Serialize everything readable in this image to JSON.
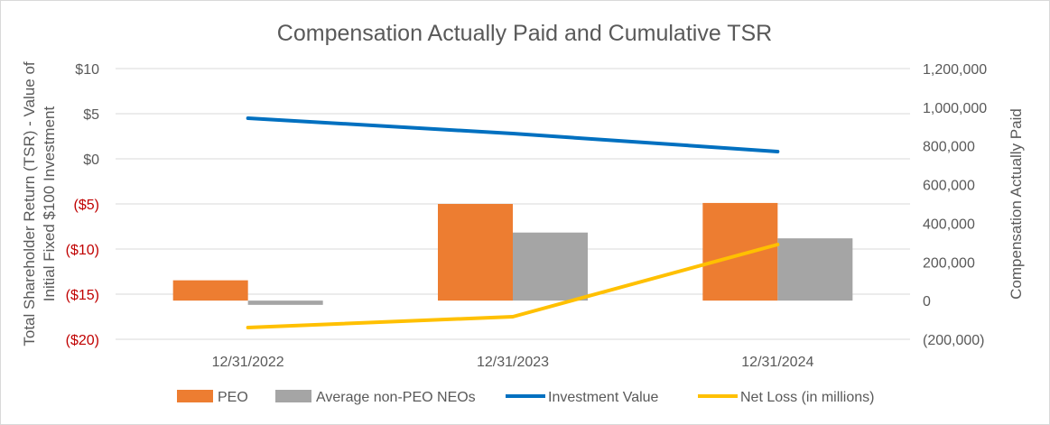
{
  "chart_data": {
    "type": "bar",
    "title": "Compensation Actually Paid and Cumulative TSR",
    "categories": [
      "12/31/2022",
      "12/31/2023",
      "12/31/2024"
    ],
    "left_axis": {
      "label": "Total Shareholder Return (TSR) - Value of Initial Fixed $100 Investment",
      "label_line1": "Total Shareholder Return (TSR) - Value of",
      "label_line2": "Initial Fixed $100 Investment",
      "ylim": [
        -20,
        10
      ],
      "ticks": [
        {
          "value": 10,
          "label": "$10",
          "color": "#595959"
        },
        {
          "value": 5,
          "label": "$5",
          "color": "#595959"
        },
        {
          "value": 0,
          "label": "$0",
          "color": "#595959"
        },
        {
          "value": -5,
          "label": "($5)",
          "color": "#c00000"
        },
        {
          "value": -10,
          "label": "($10)",
          "color": "#c00000"
        },
        {
          "value": -15,
          "label": "($15)",
          "color": "#c00000"
        },
        {
          "value": -20,
          "label": "($20)",
          "color": "#c00000"
        }
      ]
    },
    "right_axis": {
      "label": "Compensation Actually Paid",
      "ylim": [
        -200000,
        1200000
      ],
      "ticks": [
        {
          "value": 1200000,
          "label": "1,200,000"
        },
        {
          "value": 1000000,
          "label": "1,000,000"
        },
        {
          "value": 800000,
          "label": "800,000"
        },
        {
          "value": 600000,
          "label": "600,000"
        },
        {
          "value": 400000,
          "label": "400,000"
        },
        {
          "value": 200000,
          "label": "200,000"
        },
        {
          "value": 0,
          "label": "0"
        },
        {
          "value": -200000,
          "label": "(200,000)"
        }
      ]
    },
    "series": [
      {
        "name": "PEO",
        "type": "bar",
        "axis": "right",
        "color": "#ed7d31",
        "values": [
          105000,
          500000,
          505000
        ]
      },
      {
        "name": "Average non-PEO NEOs",
        "type": "bar",
        "axis": "right",
        "color": "#a5a5a5",
        "values": [
          -22000,
          352000,
          322000
        ]
      },
      {
        "name": "Investment Value",
        "type": "line",
        "axis": "left",
        "color": "#0070c0",
        "values": [
          4.5,
          2.8,
          0.8
        ]
      },
      {
        "name": "Net Loss (in millions)",
        "type": "line",
        "axis": "left",
        "color": "#ffc000",
        "values": [
          -18.7,
          -17.5,
          -9.5
        ]
      }
    ]
  }
}
